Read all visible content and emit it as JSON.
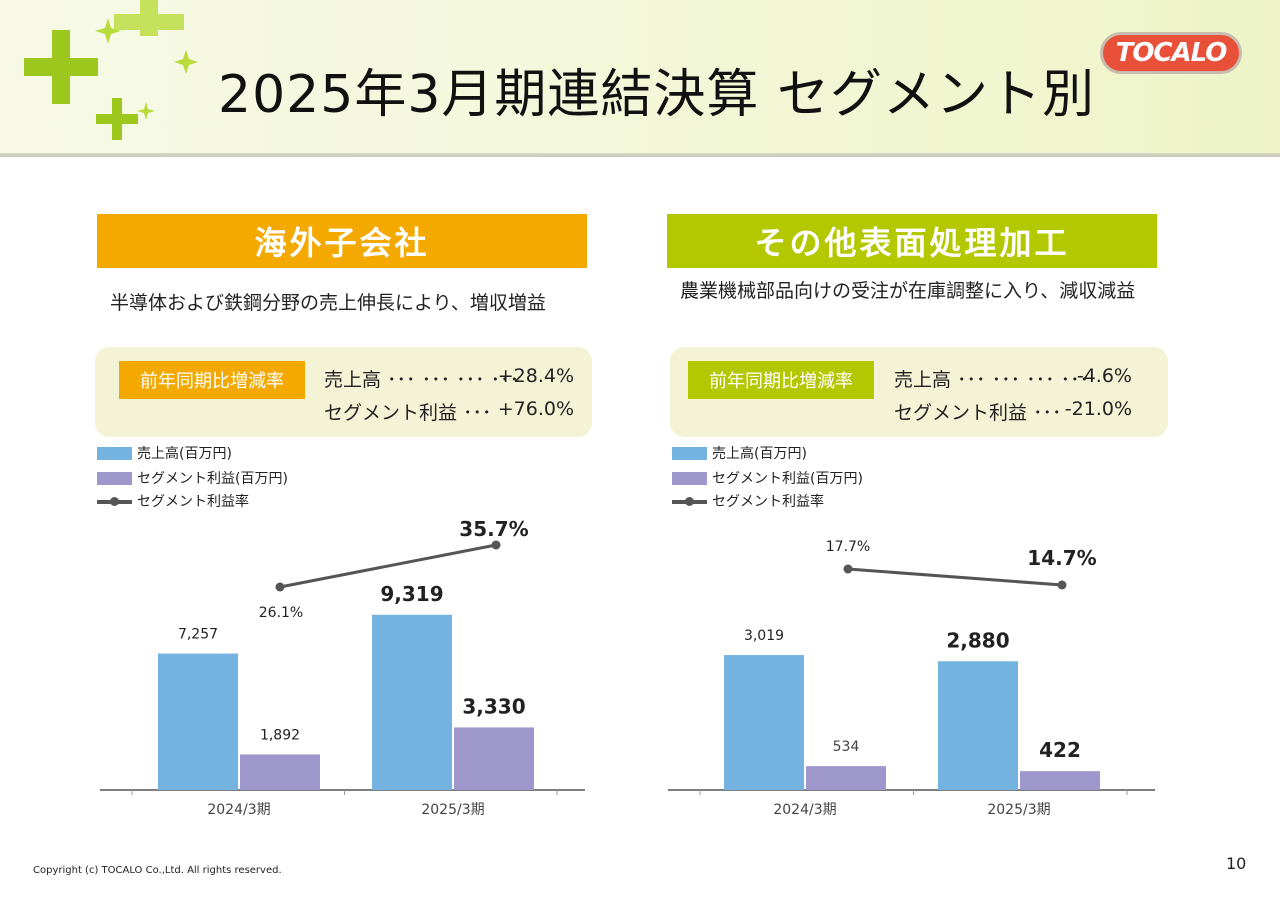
{
  "page_title": "2025年3月期連結決算 セグメント別",
  "logo_text": "TOCALO",
  "segments": [
    {
      "name": "海外子会社",
      "description": "半導体および鉄鋼分野の売上伸長により、増収増益",
      "badge": "前年同期比増減率",
      "rates": [
        {
          "label": "売上高 ･･･ ･･･ ･･･ ･･･",
          "value": "+28.4%"
        },
        {
          "label": "セグメント利益 ･･･",
          "value": "+76.0%"
        }
      ]
    },
    {
      "name": "その他表面処理加工",
      "description": "農業機械部品向けの受注が在庫調整に入り、減収減益",
      "badge": "前年同期比増減率",
      "rates": [
        {
          "label": "売上高 ･･･ ･･･ ･･･ ･･･",
          "value": "-4.6%"
        },
        {
          "label": "セグメント利益 ･･･",
          "value": "-21.0%"
        }
      ]
    }
  ],
  "legend": [
    "売上高(百万円)",
    "セグメント利益(百万円)",
    "セグメント利益率"
  ],
  "chart_data": [
    {
      "type": "bar",
      "title": "海外子会社",
      "categories": [
        "2024/3期",
        "2025/3期"
      ],
      "series": [
        {
          "name": "売上高(百万円)",
          "values": [
            7257,
            9319
          ],
          "labels": [
            "7,257",
            "9,319"
          ]
        },
        {
          "name": "セグメント利益(百万円)",
          "values": [
            1892,
            3330
          ],
          "labels": [
            "1,892",
            "3,330"
          ]
        },
        {
          "name": "セグメント利益率",
          "type": "line",
          "values": [
            26.1,
            35.7
          ],
          "labels": [
            "26.1%",
            "35.7%"
          ]
        }
      ]
    },
    {
      "type": "bar",
      "title": "その他表面処理加工",
      "categories": [
        "2024/3期",
        "2025/3期"
      ],
      "series": [
        {
          "name": "売上高(百万円)",
          "values": [
            3019,
            2880
          ],
          "labels": [
            "3,019",
            "2,880"
          ]
        },
        {
          "name": "セグメント利益(百万円)",
          "values": [
            534,
            422
          ],
          "labels": [
            "534",
            "422"
          ]
        },
        {
          "name": "セグメント利益率",
          "type": "line",
          "values": [
            17.7,
            14.7
          ],
          "labels": [
            "17.7%",
            "14.7%"
          ]
        }
      ]
    }
  ],
  "colors": {
    "sales": "#74b3e0",
    "profit": "#9d97cb",
    "rate_line": "#555555",
    "segment1": "#f4a900",
    "segment2": "#b4c800",
    "box_bg": "#f5f3d5"
  },
  "footer": "Copyright (c) TOCALO Co.,Ltd. All rights reserved.",
  "page_number": "10"
}
